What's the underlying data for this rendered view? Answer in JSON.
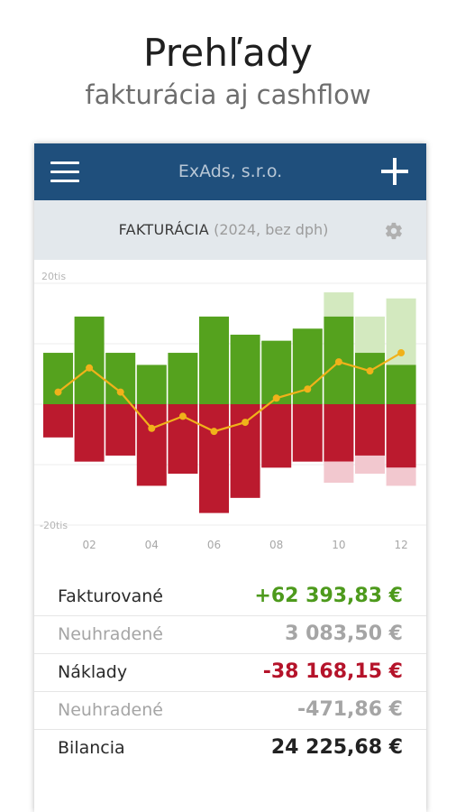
{
  "promo": {
    "title": "Prehľady",
    "subtitle": "fakturácia aj cashflow"
  },
  "appbar": {
    "title": "ExAds, s.r.o.",
    "menu_icon": "hamburger-menu-icon",
    "add_icon": "plus-icon"
  },
  "subheader": {
    "title": "FAKTURÁCIA",
    "detail": "(2024, bez dph)",
    "settings_icon": "gear-icon"
  },
  "colors": {
    "appbar": "#1f4f7c",
    "income": "#55a21e",
    "income_projected": "#d3e9bf",
    "expense": "#bb1a2e",
    "expense_projected": "#f2c8cf",
    "balance_line": "#f0b21a"
  },
  "chart_data": {
    "type": "bar",
    "title": "",
    "y_tick_labels": [
      "20tis",
      "-20tis"
    ],
    "ylim": [
      -20000,
      20000
    ],
    "x_tick_labels": [
      "02",
      "04",
      "06",
      "08",
      "10",
      "12"
    ],
    "categories": [
      "01",
      "02",
      "03",
      "04",
      "05",
      "06",
      "07",
      "08",
      "09",
      "10",
      "11",
      "12"
    ],
    "series": [
      {
        "values": [
          8500,
          14500,
          8500,
          6500,
          8500,
          14500,
          11500,
          10500,
          12500,
          14500,
          8500,
          6500
        ]
      },
      {
        "values": [
          0,
          0,
          0,
          0,
          0,
          0,
          0,
          0,
          0,
          4000,
          6000,
          11000
        ]
      },
      {
        "values": [
          -5500,
          -9500,
          -8500,
          -13500,
          -11500,
          -18000,
          -15500,
          -10500,
          -9500,
          -9500,
          -8500,
          -10500
        ]
      },
      {
        "values": [
          0,
          0,
          0,
          0,
          0,
          0,
          0,
          0,
          0,
          -3500,
          -3000,
          -3000
        ]
      },
      {
        "values": [
          2000,
          6000,
          2000,
          -4000,
          -2000,
          -4500,
          -3000,
          1000,
          2500,
          7000,
          5500,
          8500
        ]
      }
    ]
  },
  "summary": [
    {
      "label": "Fakturované",
      "value": "+62 393,83 €",
      "style": "pos"
    },
    {
      "label": "Neuhradené",
      "value": "3 083,50 €",
      "style": "sec"
    },
    {
      "label": "Náklady",
      "value": "-38 168,15 €",
      "style": "neg"
    },
    {
      "label": "Neuhradené",
      "value": "-471,86 €",
      "style": "sec"
    },
    {
      "label": "Bilancia",
      "value": "24 225,68 €",
      "style": "total"
    }
  ]
}
